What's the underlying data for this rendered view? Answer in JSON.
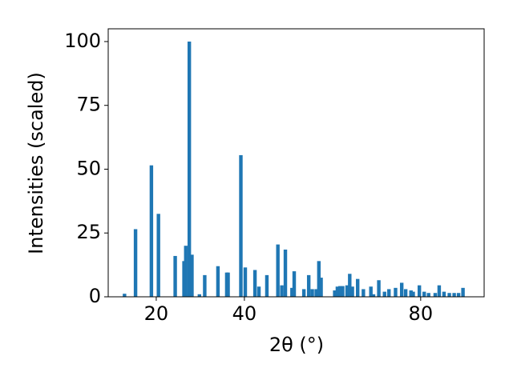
{
  "chart_data": {
    "type": "bar",
    "x_label": "2θ (°)",
    "y_label": "Intensities (scaled)",
    "x": [
      12.8,
      15.3,
      18.9,
      20.5,
      24.3,
      26.3,
      26.7,
      27.5,
      28.1,
      29.8,
      31.0,
      34.0,
      36.0,
      36.3,
      39.2,
      40.2,
      42.4,
      43.3,
      45.1,
      47.6,
      48.5,
      49.3,
      50.8,
      51.3,
      53.5,
      54.6,
      55.4,
      56.3,
      56.9,
      57.4,
      60.5,
      61.1,
      61.7,
      62.3,
      63.3,
      63.9,
      64.5,
      65.7,
      67.0,
      68.7,
      69.3,
      70.5,
      71.8,
      72.8,
      74.3,
      75.7,
      76.6,
      77.8,
      78.3,
      79.7,
      80.8,
      81.8,
      83.3,
      84.2,
      85.3,
      86.5,
      87.6,
      88.6,
      89.6
    ],
    "values": [
      1.2,
      26.5,
      51.5,
      32.5,
      16,
      14,
      20,
      100,
      16.5,
      1,
      8.5,
      12,
      9.5,
      9.5,
      55.5,
      11.5,
      10.5,
      4,
      8.5,
      20.5,
      4.5,
      18.5,
      3.5,
      10,
      3,
      8.5,
      3,
      3,
      14,
      7.5,
      2.5,
      4,
      4.2,
      4.2,
      4.5,
      9,
      4,
      7,
      3,
      4,
      1,
      6.5,
      2,
      3,
      3.5,
      5.5,
      3,
      2.5,
      2,
      4.5,
      2,
      1.5,
      1.5,
      4.5,
      2,
      1.5,
      1.5,
      1.5,
      3.5
    ],
    "color": "#1f77b4",
    "xlim": [
      9.1,
      94.4
    ],
    "xticks": [
      20,
      40,
      80
    ],
    "ylim": [
      0,
      105
    ],
    "yticks": [
      0,
      25,
      50,
      75,
      100
    ]
  }
}
